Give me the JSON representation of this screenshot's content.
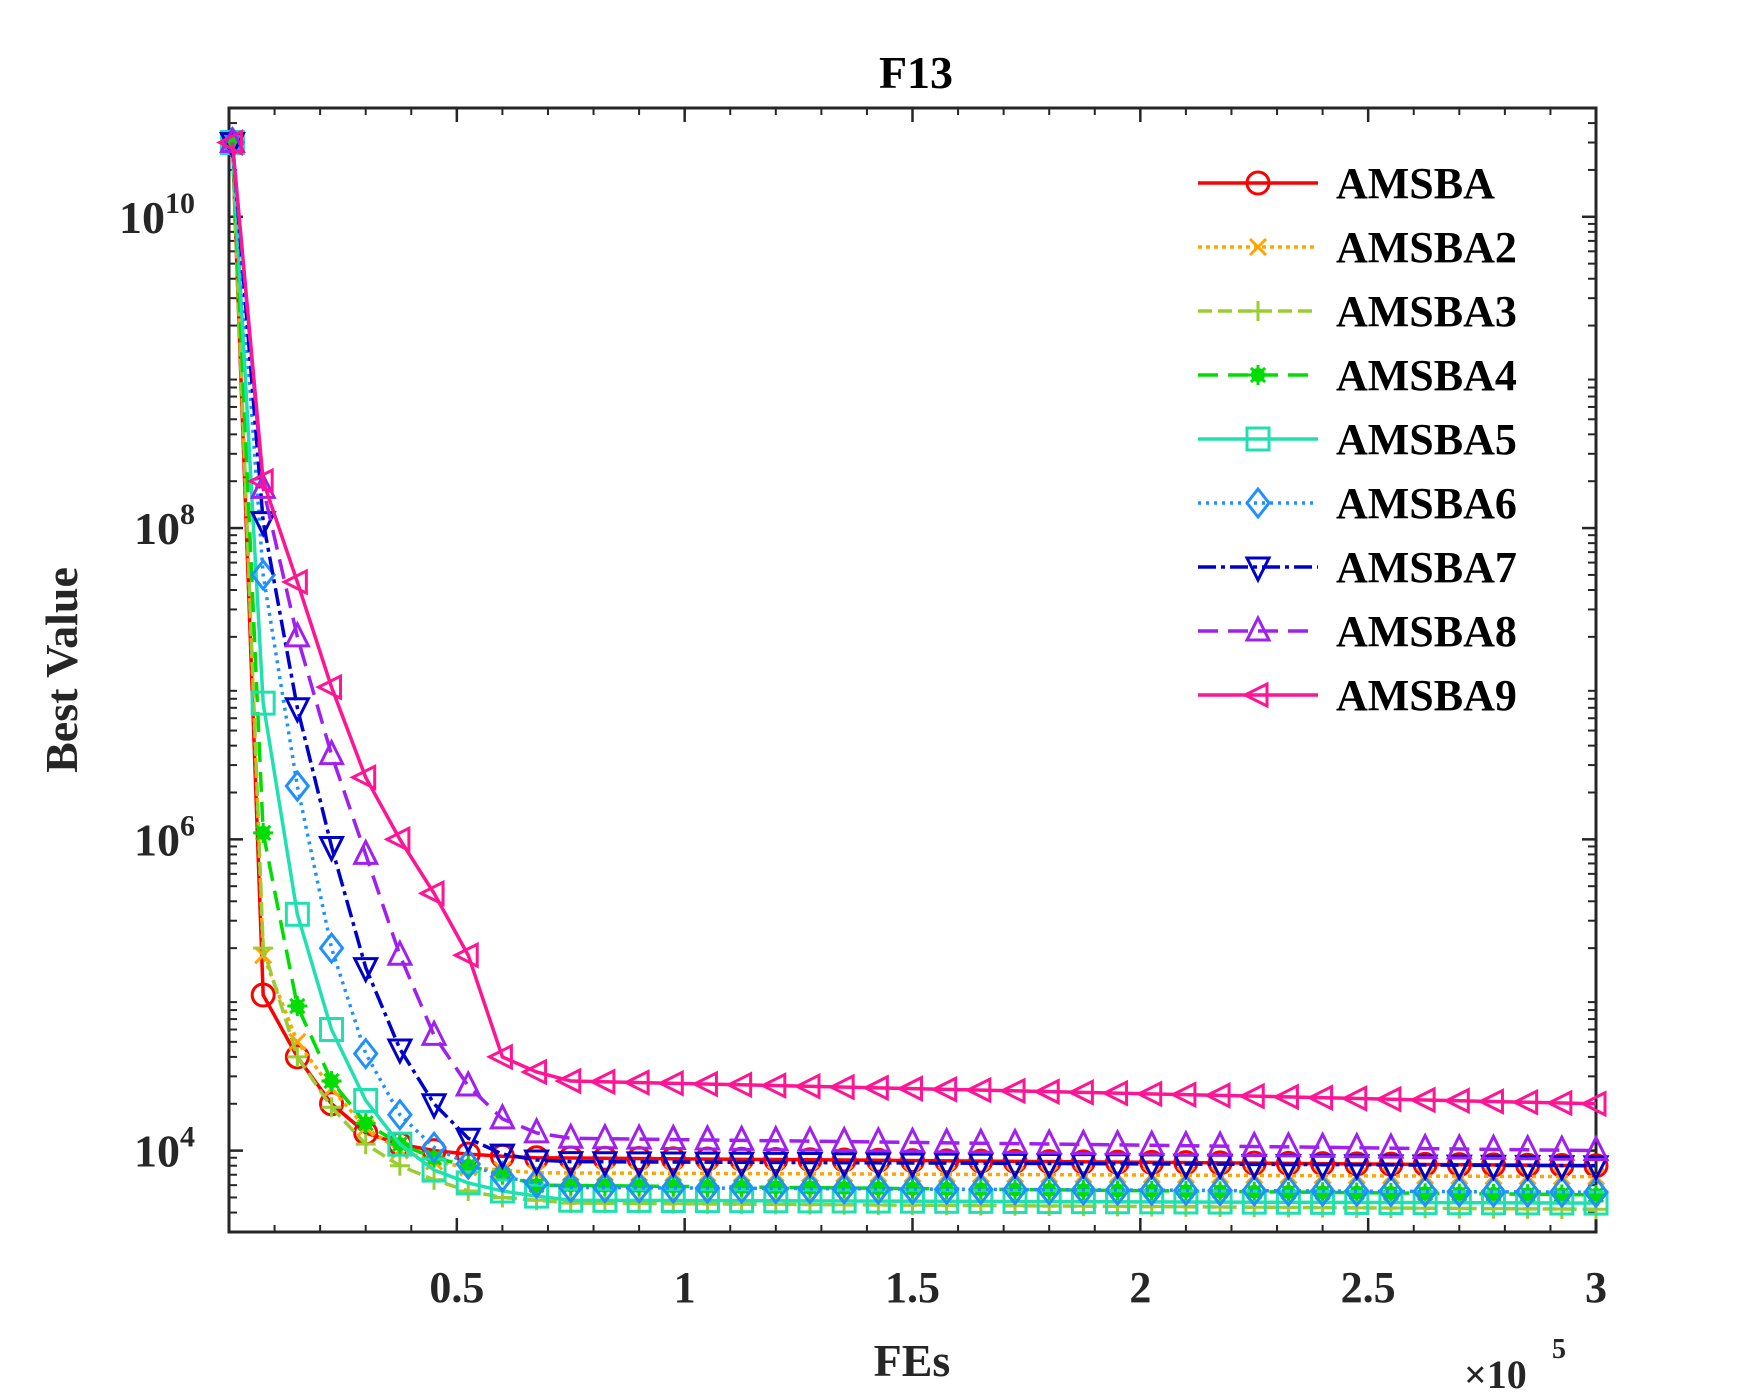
{
  "chart_data": {
    "type": "line",
    "title": "F13",
    "xlabel": "FEs",
    "ylabel": "Best Value",
    "x_exponent_label": "×10",
    "x_exponent_power": "5",
    "xlim": [
      0,
      3
    ],
    "ylim": [
      3000,
      50000000000
    ],
    "yscale": "log",
    "grid": false,
    "legend_position": "top-right",
    "x_ticks": [
      {
        "value": 0.5,
        "label": "0.5"
      },
      {
        "value": 1,
        "label": "1"
      },
      {
        "value": 1.5,
        "label": "1.5"
      },
      {
        "value": 2,
        "label": "2"
      },
      {
        "value": 2.5,
        "label": "2.5"
      },
      {
        "value": 3,
        "label": "3"
      }
    ],
    "y_ticks": [
      {
        "value": 10000,
        "base": "10",
        "exp": "4"
      },
      {
        "value": 1000000,
        "base": "10",
        "exp": "6"
      },
      {
        "value": 100000000,
        "base": "10",
        "exp": "8"
      },
      {
        "value": 10000000000,
        "base": "10",
        "exp": "10"
      }
    ],
    "series": [
      {
        "name": "AMSBA",
        "color": "#ff0000",
        "dash": "",
        "marker": "circle",
        "x": [
          0.0075,
          0.075,
          0.15,
          0.225,
          0.3,
          0.375,
          0.45,
          0.525,
          0.6,
          0.675,
          3.0
        ],
        "y": [
          30000000000,
          100000,
          40000,
          20000,
          13000,
          11000,
          10000,
          9500,
          9200,
          9000,
          8000
        ]
      },
      {
        "name": "AMSBA2",
        "color": "#ffa500",
        "dash": "4,4",
        "marker": "x",
        "x": [
          0.0075,
          0.075,
          0.15,
          0.225,
          0.3,
          0.375,
          0.45,
          0.525,
          0.6,
          0.675,
          3.0
        ],
        "y": [
          30000000000,
          180000,
          50000,
          25000,
          14000,
          10000,
          8500,
          7800,
          7500,
          7200,
          6800
        ]
      },
      {
        "name": "AMSBA3",
        "color": "#9acd32",
        "dash": "14,6",
        "marker": "plus",
        "x": [
          0.0075,
          0.075,
          0.15,
          0.225,
          0.3,
          0.375,
          0.45,
          0.525,
          0.6,
          0.675,
          0.75,
          3.0
        ],
        "y": [
          30000000000,
          200000,
          40000,
          19000,
          11000,
          8000,
          6500,
          5500,
          5000,
          4800,
          4600,
          4200
        ]
      },
      {
        "name": "AMSBA4",
        "color": "#00dd00",
        "dash": "20,10",
        "marker": "asterisk",
        "x": [
          0.0075,
          0.075,
          0.15,
          0.225,
          0.3,
          0.375,
          0.45,
          0.525,
          0.6,
          0.675,
          3.0
        ],
        "y": [
          30000000000,
          1100000,
          85000,
          28000,
          15000,
          11000,
          9000,
          8000,
          7000,
          6000,
          5200
        ]
      },
      {
        "name": "AMSBA5",
        "color": "#20e0b0",
        "dash": "",
        "marker": "square",
        "x": [
          0.0075,
          0.075,
          0.15,
          0.225,
          0.3,
          0.375,
          0.45,
          0.525,
          0.6,
          0.675,
          0.75,
          3.0
        ],
        "y": [
          30000000000,
          7500000,
          330000,
          60000,
          21000,
          11000,
          7500,
          6200,
          5500,
          5100,
          4800,
          4600
        ]
      },
      {
        "name": "AMSBA6",
        "color": "#1e90ff",
        "dash": "3,5",
        "marker": "diamond",
        "x": [
          0.0075,
          0.075,
          0.15,
          0.225,
          0.3,
          0.375,
          0.45,
          0.525,
          0.6,
          0.675,
          0.75,
          3.0
        ],
        "y": [
          30000000000,
          50000000,
          2200000,
          200000,
          42000,
          17000,
          10500,
          8200,
          6800,
          6200,
          5800,
          5400
        ]
      },
      {
        "name": "AMSBA7",
        "color": "#0000cd",
        "dash": "18,5,4,5",
        "marker": "triangle-down",
        "x": [
          0.0075,
          0.075,
          0.15,
          0.225,
          0.3,
          0.375,
          0.45,
          0.525,
          0.6,
          0.675,
          0.75,
          3.0
        ],
        "y": [
          30000000000,
          110000000,
          7000000,
          900000,
          150000,
          45000,
          20000,
          12000,
          9500,
          8700,
          8500,
          8000
        ]
      },
      {
        "name": "AMSBA8",
        "color": "#a020f0",
        "dash": "20,10",
        "marker": "triangle-up",
        "x": [
          0.0075,
          0.075,
          0.15,
          0.225,
          0.3,
          0.375,
          0.45,
          0.525,
          0.6,
          0.675,
          0.75,
          3.0
        ],
        "y": [
          30000000000,
          180000000,
          20000000,
          3500000,
          800000,
          180000,
          55000,
          26000,
          16000,
          13000,
          12000,
          10000
        ]
      },
      {
        "name": "AMSBA9",
        "color": "#ff1493",
        "dash": "",
        "marker": "triangle-left",
        "x": [
          0.0075,
          0.075,
          0.15,
          0.225,
          0.3,
          0.375,
          0.45,
          0.525,
          0.6,
          0.675,
          0.75,
          3.0
        ],
        "y": [
          30000000000,
          200000000,
          45000000,
          9500000,
          2500000,
          1000000,
          450000,
          180000,
          40000,
          32000,
          28000,
          20000
        ]
      }
    ]
  }
}
